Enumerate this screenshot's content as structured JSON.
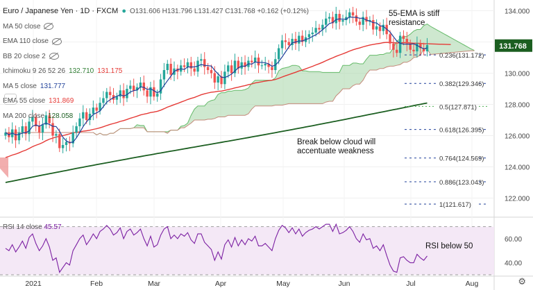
{
  "header": {
    "symbol": "Euro / Japanese Yen · 1D · FXCM",
    "ohlc": "O131.606  H131.796  L131.427  C131.768  +0.162 (+0.12%)"
  },
  "legend": [
    {
      "label": "MA 50 close",
      "hidden": true,
      "value": "",
      "value2": "",
      "color": ""
    },
    {
      "label": "EMA 110 close",
      "hidden": true,
      "value": "",
      "value2": "",
      "color": ""
    },
    {
      "label": "BB 20 close 2",
      "hidden": true,
      "value": "",
      "value2": "",
      "color": ""
    },
    {
      "label": "Ichimoku 9 26 52 26",
      "hidden": false,
      "value": "132.710",
      "value2": "131.175",
      "color": "#2e7d32",
      "color2": "#e53935"
    },
    {
      "label": "MA 5 close",
      "hidden": false,
      "value": "131.777",
      "value2": "",
      "color": "#1e3f99"
    },
    {
      "label": "EMA 55 close",
      "hidden": false,
      "value": "131.869",
      "value2": "",
      "color": "#e53935"
    },
    {
      "label": "MA 200 close",
      "hidden": false,
      "value": "128.058",
      "value2": "",
      "color": "#1b5e20"
    }
  ],
  "rsi_label": "RSI 14 close",
  "rsi_value": "45.57",
  "annotations": {
    "ema": "55-EMA is stiff\nresistance",
    "cloud": "Break below cloud will\naccentuate weakness",
    "rsi": "RSI below 50"
  },
  "price_tag": "131.768",
  "colors": {
    "up": "#26a69a",
    "down": "#ef5350",
    "ema55": "#e53935",
    "ma200": "#1b5e20",
    "ma5": "#1e3f99",
    "cloud": "#a5d6a7",
    "fib": "#1e3f99"
  },
  "chart_data": {
    "type": "candlestick",
    "title": "Euro / Japanese Yen · 1D · FXCM",
    "x_ticks": [
      "2021",
      "Feb",
      "Mar",
      "Apr",
      "May",
      "Jun",
      "Jul",
      "Aug"
    ],
    "y_ticks": [
      122.0,
      124.0,
      126.0,
      128.0,
      130.0,
      132.0,
      134.0
    ],
    "ylim": [
      121.0,
      134.6
    ],
    "rsi_ticks": [
      40.0,
      60.0
    ],
    "rsi_lim": [
      30,
      75
    ],
    "fib_levels": [
      {
        "label": "0.236(131.172)",
        "value": 131.172
      },
      {
        "label": "0.382(129.346)",
        "value": 129.346
      },
      {
        "label": "0.5(127.871)",
        "value": 127.871
      },
      {
        "label": "0.618(126.395)",
        "value": 126.395
      },
      {
        "label": "0.764(124.569)",
        "value": 124.569
      },
      {
        "label": "0.886(123.043)",
        "value": 123.043
      },
      {
        "label": "1(121.617)",
        "value": 121.617
      }
    ],
    "closes": [
      126.2,
      125.9,
      126.4,
      125.7,
      126.2,
      126.6,
      126.1,
      126.9,
      127.2,
      126.6,
      126.2,
      126.7,
      127.3,
      126.8,
      126.0,
      126.1,
      125.2,
      125.4,
      125.6,
      125.5,
      126.2,
      126.6,
      127.1,
      127.5,
      127.0,
      127.4,
      127.8,
      127.6,
      128.1,
      128.4,
      128.8,
      128.6,
      128.3,
      128.5,
      128.9,
      128.4,
      129.0,
      129.2,
      128.9,
      129.1,
      129.4,
      128.9,
      128.5,
      129.1,
      128.5,
      128.7,
      129.6,
      130.2,
      130.6,
      129.9,
      130.3,
      130.1,
      130.5,
      130.4,
      130.7,
      130.3,
      130.1,
      130.8,
      130.9,
      130.4,
      130.2,
      130.0,
      129.4,
      129.8,
      129.3,
      130.1,
      130.5,
      130.0,
      130.8,
      130.3,
      130.7,
      130.4,
      130.8,
      130.7,
      131.0,
      130.5,
      130.5,
      130.6,
      130.4,
      130.2,
      130.9,
      131.6,
      132.1,
      132.0,
      131.8,
      132.2,
      131.9,
      132.4,
      132.0,
      132.3,
      132.5,
      132.6,
      132.9,
      132.8,
      133.1,
      133.5,
      133.6,
      133.2,
      133.8,
      133.3,
      133.4,
      133.6,
      133.9,
      133.7,
      133.3,
      133.1,
      133.6,
      133.3,
      133.4,
      132.8,
      133.0,
      132.7,
      133.1,
      132.5,
      131.9,
      131.5,
      131.3,
      132.4,
      132.2,
      131.9,
      131.5,
      131.4,
      131.9,
      131.6,
      131.4,
      131.8
    ],
    "rsi": [
      52,
      50,
      55,
      49,
      53,
      58,
      52,
      61,
      64,
      56,
      50,
      54,
      60,
      53,
      42,
      44,
      32,
      36,
      40,
      38,
      50,
      55,
      60,
      63,
      55,
      59,
      64,
      60,
      66,
      68,
      71,
      68,
      63,
      65,
      69,
      60,
      66,
      68,
      63,
      65,
      68,
      60,
      54,
      62,
      53,
      55,
      63,
      68,
      70,
      60,
      63,
      60,
      64,
      62,
      65,
      59,
      56,
      64,
      64,
      57,
      54,
      51,
      42,
      49,
      43,
      55,
      59,
      53,
      61,
      54,
      59,
      55,
      60,
      58,
      62,
      54,
      54,
      56,
      53,
      50,
      60,
      67,
      71,
      69,
      65,
      69,
      64,
      68,
      62,
      65,
      67,
      68,
      70,
      68,
      70,
      72,
      72,
      66,
      72,
      64,
      65,
      67,
      70,
      66,
      60,
      57,
      64,
      59,
      60,
      52,
      54,
      50,
      55,
      46,
      38,
      33,
      32,
      44,
      45,
      42,
      40,
      40,
      47,
      44,
      42,
      45.57
    ]
  }
}
